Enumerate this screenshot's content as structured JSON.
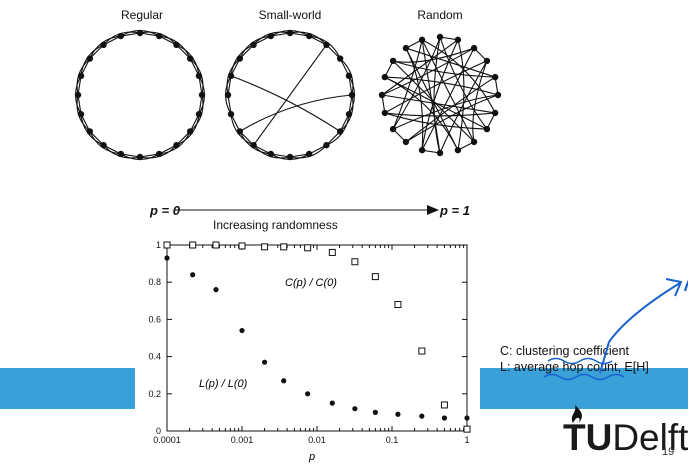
{
  "networks": {
    "regular": "Regular",
    "small_world": "Small-world",
    "random": "Random"
  },
  "randomness": {
    "p0": "p = 0",
    "p1": "p = 1",
    "label": "Increasing randomness"
  },
  "notes": {
    "line1": "C: clustering coefficient",
    "line2": "L: average hop count, E[H]"
  },
  "logo": {
    "tu": "TU",
    "delft": "Delft"
  },
  "page_number": "19",
  "accent_color": "#3aa0d8",
  "chart_data": {
    "type": "scatter",
    "xlabel": "p",
    "x_scale": "log",
    "xlim": [
      0.0001,
      1
    ],
    "ylim": [
      0,
      1
    ],
    "xticks": [
      "0.0001",
      "0.001",
      "0.01",
      "0.1",
      "1"
    ],
    "yticks": [
      "0",
      "0.2",
      "0.4",
      "0.6",
      "0.8",
      "1"
    ],
    "series": [
      {
        "name": "C(p) / C(0)",
        "marker": "open-square",
        "points": [
          [
            0.0001,
            1.0
          ],
          [
            0.00022,
            1.0
          ],
          [
            0.00045,
            1.0
          ],
          [
            0.001,
            0.995
          ],
          [
            0.002,
            0.99
          ],
          [
            0.0036,
            0.99
          ],
          [
            0.0075,
            0.985
          ],
          [
            0.016,
            0.96
          ],
          [
            0.032,
            0.91
          ],
          [
            0.06,
            0.83
          ],
          [
            0.12,
            0.68
          ],
          [
            0.25,
            0.43
          ],
          [
            0.5,
            0.14
          ],
          [
            1.0,
            0.01
          ]
        ]
      },
      {
        "name": "L(p) / L(0)",
        "marker": "filled-circle",
        "points": [
          [
            0.0001,
            0.93
          ],
          [
            0.00022,
            0.84
          ],
          [
            0.00045,
            0.76
          ],
          [
            0.001,
            0.54
          ],
          [
            0.002,
            0.37
          ],
          [
            0.0036,
            0.27
          ],
          [
            0.0075,
            0.2
          ],
          [
            0.016,
            0.15
          ],
          [
            0.032,
            0.12
          ],
          [
            0.06,
            0.1
          ],
          [
            0.12,
            0.09
          ],
          [
            0.25,
            0.08
          ],
          [
            0.5,
            0.07
          ],
          [
            1.0,
            0.07
          ]
        ]
      }
    ]
  }
}
